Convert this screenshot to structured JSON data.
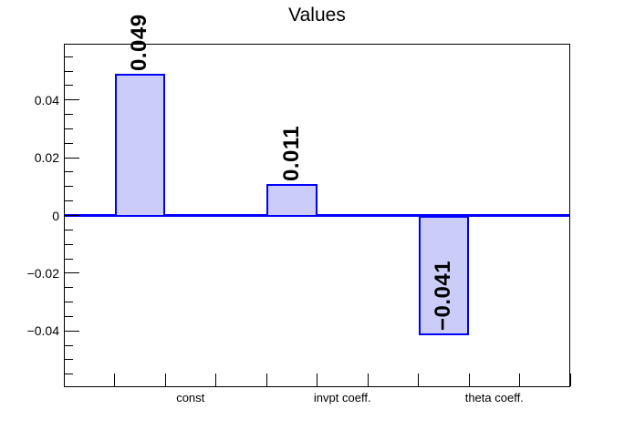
{
  "chart_data": {
    "type": "bar",
    "title": "Values",
    "categories": [
      "const",
      "invpt coeff.",
      "theta coeff."
    ],
    "values": [
      0.049,
      0.011,
      -0.041
    ],
    "value_labels": [
      "0.049",
      "0.011",
      "−0.041"
    ],
    "xlabel": "",
    "ylabel": "",
    "ylim": [
      -0.0595,
      0.0595
    ],
    "y_major_ticks": [
      -0.04,
      -0.02,
      0,
      0.02,
      0.04
    ],
    "y_tick_labels": [
      "−0.04",
      "−0.02",
      "0",
      "0.02",
      "0.04"
    ],
    "y_minor_step": 0.005,
    "x_bins": 10,
    "bar_bins": [
      2,
      5,
      8
    ],
    "label_bins": [
      3,
      6,
      9
    ],
    "grid": false,
    "legend": false,
    "colors": {
      "bar_fill": "#ccccf8",
      "bar_border": "#0000ff",
      "zero_line": "#0000ff",
      "frame": "#000000",
      "text": "#000000"
    }
  }
}
